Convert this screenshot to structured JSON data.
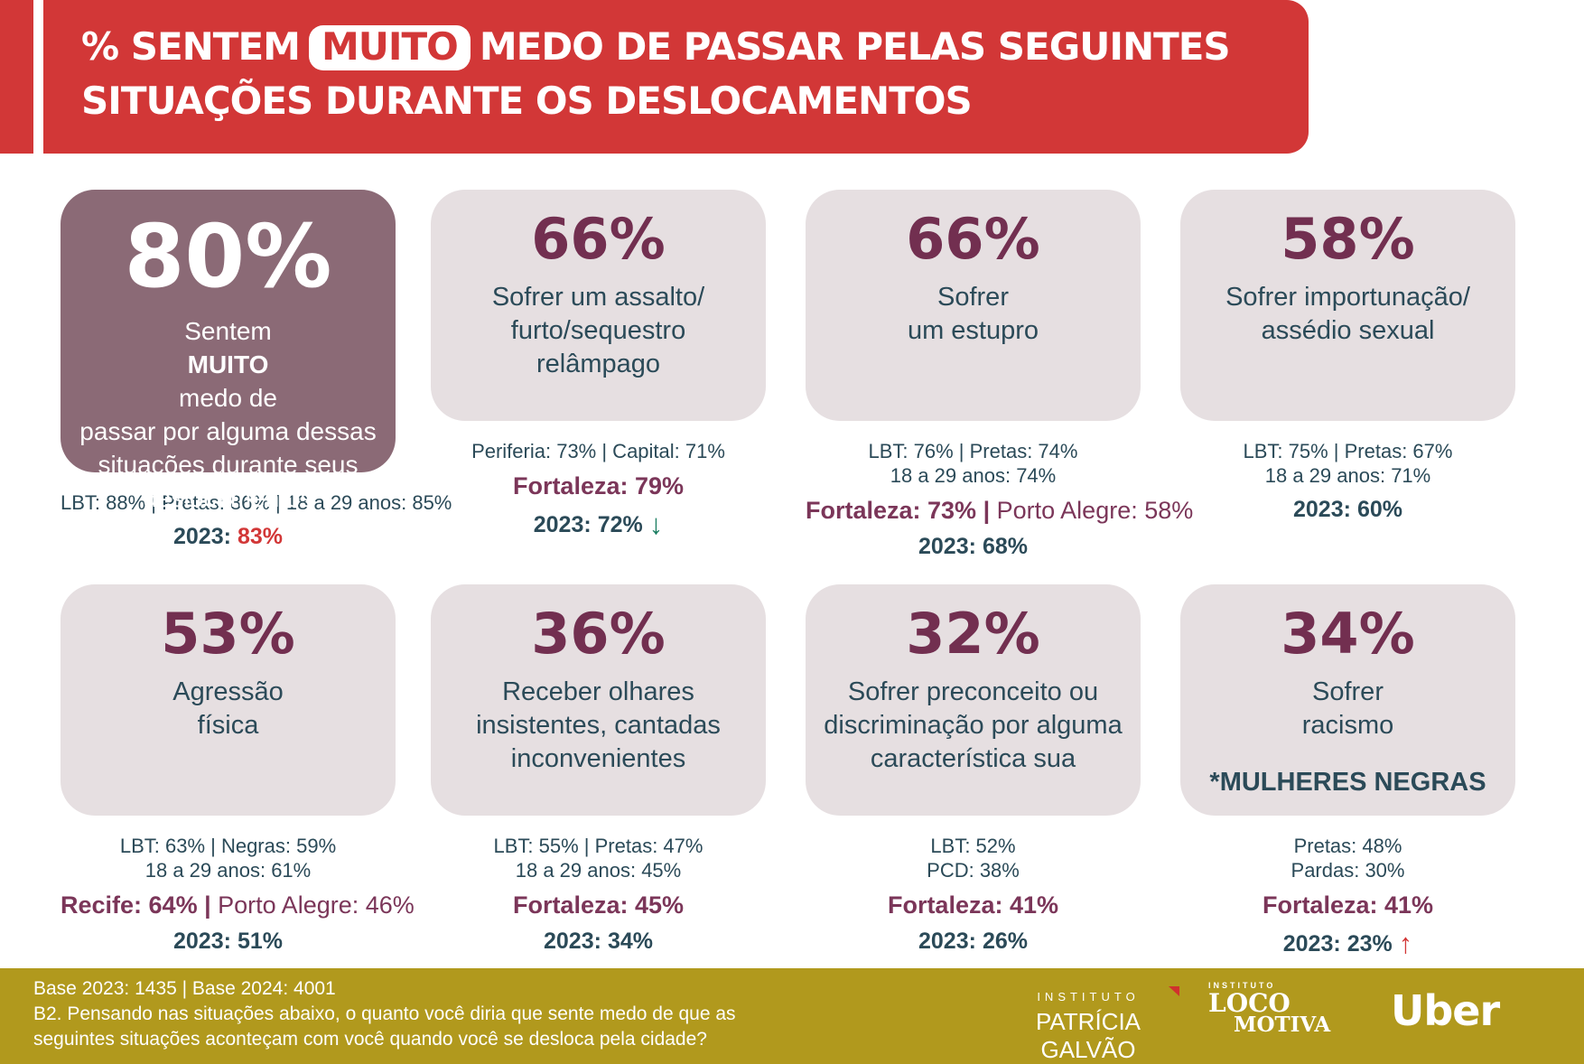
{
  "chart_data": {
    "type": "table",
    "title": "% SENTEM MUITO MEDO DE PASSAR PELAS SEGUINTES SITUAÇÕES DURANTE OS DESLOCAMENTOS",
    "columns": [
      "situação",
      "% muito medo 2024",
      "recortes",
      "valor 2023",
      "tendência"
    ],
    "rows": [
      [
        "Sentem MUITO medo de passar por alguma dessas situações durante seus deslocamentos",
        80,
        "LBT: 88% | Pretas: 86% | 18 a 29 anos: 85%",
        83,
        ""
      ],
      [
        "Sofrer um assalto/furto/sequestro relâmpago",
        66,
        "Periferia: 73% | Capital: 71% | Fortaleza: 79%",
        72,
        "queda"
      ],
      [
        "Sofrer um estupro",
        66,
        "LBT: 76% | Pretas: 74% | 18 a 29 anos: 74% | Fortaleza: 73% | Porto Alegre: 58%",
        68,
        ""
      ],
      [
        "Sofrer importunação/assédio sexual",
        58,
        "LBT: 75% | Pretas: 67% | 18 a 29 anos: 71%",
        60,
        ""
      ],
      [
        "Agressão física",
        53,
        "LBT: 63% | Negras: 59% | 18 a 29 anos: 61% | Recife: 64% | Porto Alegre: 46%",
        51,
        ""
      ],
      [
        "Receber olhares insistentes, cantadas inconvenientes",
        36,
        "LBT: 55% | Pretas: 47% | 18 a 29 anos: 45% | Fortaleza: 45%",
        34,
        ""
      ],
      [
        "Sofrer preconceito ou discriminação por alguma característica sua",
        32,
        "LBT: 52% | PCD: 38% | Fortaleza: 41%",
        26,
        ""
      ],
      [
        "Sofrer racismo (*mulheres negras)",
        34,
        "Pretas: 48% | Pardas: 30% | Fortaleza: 41%",
        23,
        "alta"
      ]
    ]
  },
  "colors": {
    "banner_red": "#D23737",
    "highlight_card": "#8B6A76",
    "card_background": "#E6DFE1",
    "percent_maroon": "#722F50",
    "body_teal": "#2B4A58",
    "city_maroon": "#7B3659",
    "trend_down_green": "#177C5F",
    "trend_up_red": "#D23737",
    "footer_olive": "#B1991D"
  },
  "icons": {
    "down_arrow": "↓",
    "up_arrow": "↑"
  },
  "header": {
    "title_prefix": "% SENTEM",
    "title_highlight": "MUITO",
    "title_suffix": "MEDO DE PASSAR PELAS SEGUINTES",
    "title_line2": "SITUAÇÕES DURANTE OS DESLOCAMENTOS"
  },
  "cards": [
    {
      "percent": "80%",
      "desc_prefix": "Sentem ",
      "desc_bold": "MUITO",
      "desc_suffix": " medo de",
      "desc_line2": "passar por alguma dessas",
      "desc_line3": "situações durante seus",
      "desc_line4": "deslocamentos",
      "stats1": "LBT: 88% | Pretas: 86% | 18 a 29 anos: 85%",
      "year_label": "2023:",
      "year_value": "83%"
    },
    {
      "percent": "66%",
      "desc_line1": "Sofrer um assalto/",
      "desc_line2": "furto/sequestro",
      "desc_line3": "relâmpago",
      "stats1": "Periferia: 73% | Capital: 71%",
      "city_bold": "Fortaleza: 79%",
      "year_label": "2023:",
      "year_value": "72%"
    },
    {
      "percent": "66%",
      "desc_line1": "Sofrer",
      "desc_line2": "um estupro",
      "stats1": "LBT: 76% | Pretas: 74%",
      "stats2": "18 a 29 anos: 74%",
      "city_bold": "Fortaleza: 73% | ",
      "city_rest": "Porto Alegre: 58%",
      "year_label": "2023:",
      "year_value": "68%"
    },
    {
      "percent": "58%",
      "desc_line1": "Sofrer importunação/",
      "desc_line2": "assédio sexual",
      "stats1": "LBT: 75% | Pretas: 67%",
      "stats2": "18 a 29 anos: 71%",
      "year_label": "2023:",
      "year_value": "60%"
    },
    {
      "percent": "53%",
      "desc_line1": "Agressão",
      "desc_line2": "física",
      "stats1": "LBT: 63% | Negras: 59%",
      "stats2": "18 a 29 anos: 61%",
      "city_bold": "Recife: 64% | ",
      "city_rest": "Porto Alegre: 46%",
      "year_label": "2023:",
      "year_value": "51%"
    },
    {
      "percent": "36%",
      "desc_line1": "Receber olhares",
      "desc_line2": "insistentes, cantadas",
      "desc_line3": "inconvenientes",
      "stats1": "LBT: 55% | Pretas: 47%",
      "stats2": "18 a 29 anos: 45%",
      "city_bold": "Fortaleza: 45%",
      "year_label": "2023:",
      "year_value": "34%"
    },
    {
      "percent": "32%",
      "desc_line1": "Sofrer preconceito ou",
      "desc_line2": "discriminação por alguma",
      "desc_line3": "característica sua",
      "stats1": "LBT: 52%",
      "stats2": "PCD: 38%",
      "city_bold": "Fortaleza: 41%",
      "year_label": "2023:",
      "year_value": "26%"
    },
    {
      "percent": "34%",
      "desc_line1": "Sofrer",
      "desc_line2": "racismo",
      "note": "*MULHERES NEGRAS",
      "stats1": "Pretas: 48%",
      "stats2": "Pardas: 30%",
      "city_bold": "Fortaleza: 41%",
      "year_label": "2023:",
      "year_value": "23%"
    }
  ],
  "footer": {
    "base_line": "Base 2023: 1435 | Base 2024: 4001",
    "question_line1": "B2. Pensando nas situações abaixo, o quanto você diria que sente medo de que as",
    "question_line2": "seguintes situações aconteçam com você quando você se desloca pela cidade?",
    "logos": {
      "pg_institute": "INSTITUTO",
      "pg_name": "PATRÍCIA GALVÃO",
      "loco_institute": "INSTITUTO",
      "loco_line1": "LOCO",
      "loco_line2": "MOTIVA",
      "uber": "Uber"
    }
  }
}
